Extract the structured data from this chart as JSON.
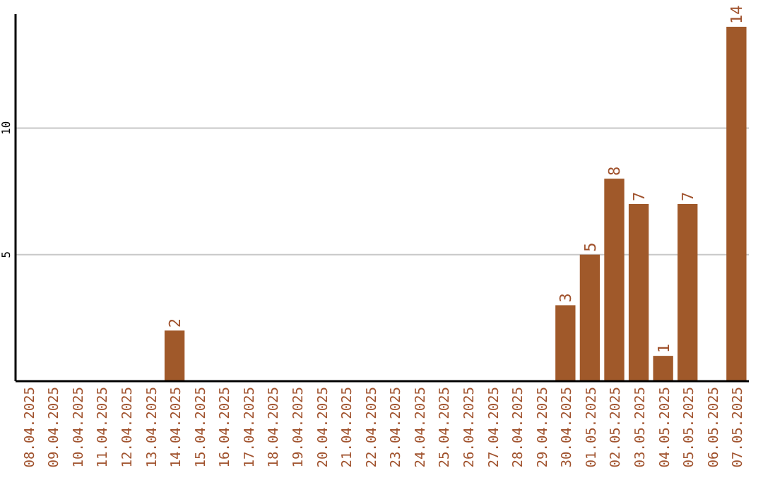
{
  "chart_data": {
    "type": "bar",
    "categories": [
      "08.04.2025",
      "09.04.2025",
      "10.04.2025",
      "11.04.2025",
      "12.04.2025",
      "13.04.2025",
      "14.04.2025",
      "15.04.2025",
      "16.04.2025",
      "17.04.2025",
      "18.04.2025",
      "19.04.2025",
      "20.04.2025",
      "21.04.2025",
      "22.04.2025",
      "23.04.2025",
      "24.04.2025",
      "25.04.2025",
      "26.04.2025",
      "27.04.2025",
      "28.04.2025",
      "29.04.2025",
      "30.04.2025",
      "01.05.2025",
      "02.05.2025",
      "03.05.2025",
      "04.05.2025",
      "05.05.2025",
      "06.05.2025",
      "07.05.2025"
    ],
    "values": [
      0,
      0,
      0,
      0,
      0,
      0,
      2,
      0,
      0,
      0,
      0,
      0,
      0,
      0,
      0,
      0,
      0,
      0,
      0,
      0,
      0,
      0,
      3,
      5,
      8,
      7,
      1,
      7,
      0,
      14
    ],
    "value_labels": [
      null,
      null,
      null,
      null,
      null,
      null,
      "2",
      null,
      null,
      null,
      null,
      null,
      null,
      null,
      null,
      null,
      null,
      null,
      null,
      null,
      null,
      null,
      "3",
      "5",
      "8",
      "7",
      "1",
      "7",
      null,
      "14"
    ],
    "color": "#a0592a",
    "ylim": [
      0,
      14.5
    ],
    "yticks": [
      5,
      10
    ],
    "grid": "y"
  }
}
